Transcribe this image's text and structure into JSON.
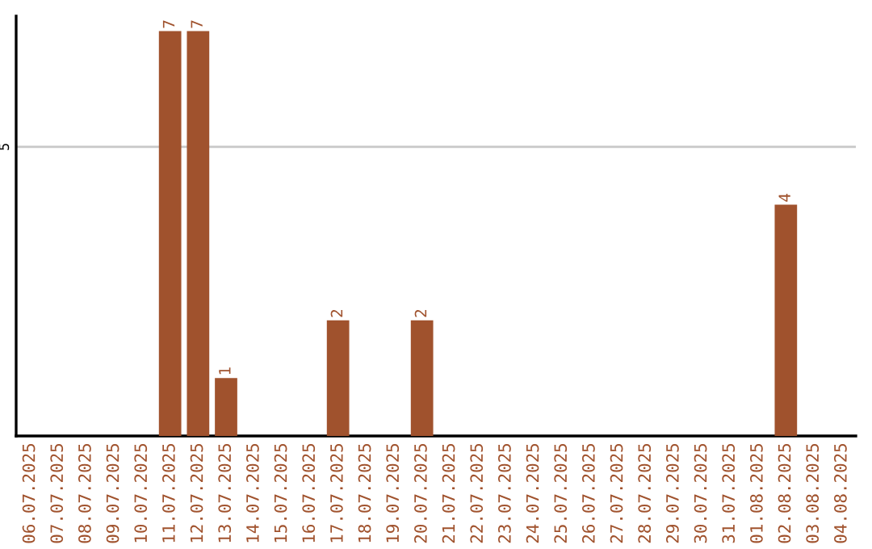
{
  "chart_data": {
    "type": "bar",
    "categories": [
      "06.07.2025",
      "07.07.2025",
      "08.07.2025",
      "09.07.2025",
      "10.07.2025",
      "11.07.2025",
      "12.07.2025",
      "13.07.2025",
      "14.07.2025",
      "15.07.2025",
      "16.07.2025",
      "17.07.2025",
      "18.07.2025",
      "19.07.2025",
      "20.07.2025",
      "21.07.2025",
      "22.07.2025",
      "23.07.2025",
      "24.07.2025",
      "25.07.2025",
      "26.07.2025",
      "27.07.2025",
      "28.07.2025",
      "29.07.2025",
      "30.07.2025",
      "31.07.2025",
      "01.08.2025",
      "02.08.2025",
      "03.08.2025",
      "04.08.2025"
    ],
    "values": [
      0,
      0,
      0,
      0,
      0,
      7,
      7,
      1,
      0,
      0,
      0,
      2,
      0,
      0,
      2,
      0,
      0,
      0,
      0,
      0,
      0,
      0,
      0,
      0,
      0,
      0,
      0,
      4,
      0,
      0
    ],
    "value_labels": [
      null,
      null,
      null,
      null,
      null,
      "7",
      "7",
      "1",
      null,
      null,
      null,
      "2",
      null,
      null,
      "2",
      null,
      null,
      null,
      null,
      null,
      null,
      null,
      null,
      null,
      null,
      null,
      null,
      "4",
      null,
      null
    ],
    "color": "#a0522d",
    "ylim": [
      0,
      7.26
    ],
    "yticks": [
      5
    ],
    "grid": "y",
    "legend": false
  }
}
